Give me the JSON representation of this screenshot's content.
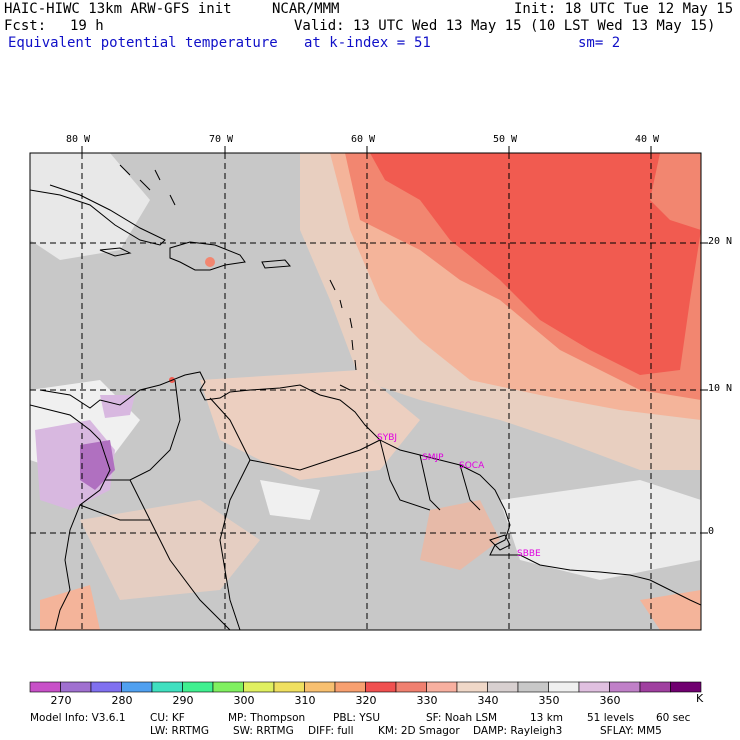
{
  "header": {
    "model": "HAIC-HIWC 13km ARW-GFS init",
    "org": "NCAR/MMM",
    "init": "Init: 18 UTC Tue 12 May 15",
    "fcst_label": "Fcst:",
    "fcst_value": "19 h",
    "valid": "Valid: 13 UTC Wed 13 May 15 (10 LST Wed 13 May 15)",
    "field": "Equivalent potential temperature",
    "level": "at k-index =",
    "level_value": "51",
    "smooth": "sm= 2"
  },
  "axes": {
    "lon_labels": [
      "80 W",
      "70 W",
      "60 W",
      "50 W",
      "40 W"
    ],
    "lat_labels": [
      "20 N",
      "10 N",
      "0"
    ]
  },
  "stations": [
    "SYBJ",
    "SMJP",
    "SOCA",
    "SBBE"
  ],
  "colorbar": {
    "unit": "K",
    "labels": [
      "270",
      "280",
      "290",
      "300",
      "310",
      "320",
      "330",
      "340",
      "350",
      "360"
    ],
    "colors": [
      "#c850c8",
      "#a070d0",
      "#8070f0",
      "#50a0f0",
      "#40e0c0",
      "#40f090",
      "#80f060",
      "#e0f060",
      "#f0e060",
      "#f8c070",
      "#f8a070",
      "#f05050",
      "#f08070",
      "#f8b0a0",
      "#f0d8c8",
      "#d8d0d0",
      "#c8c8c8",
      "#f0f0f0",
      "#e0c0e0",
      "#c080c8",
      "#a040a0",
      "#700070"
    ]
  },
  "footer": {
    "line1": [
      "Model Info: V3.6.1",
      "CU: KF",
      "MP: Thompson",
      "PBL: YSU",
      "SF: Noah LSM",
      "13 km",
      "51 levels",
      "60 sec"
    ],
    "line2": [
      "LW: RRTMG",
      "SW: RRTMG",
      "DIFF: full",
      "KM: 2D Smagor",
      "DAMP: Rayleigh3",
      "SFLAY: MM5"
    ]
  }
}
